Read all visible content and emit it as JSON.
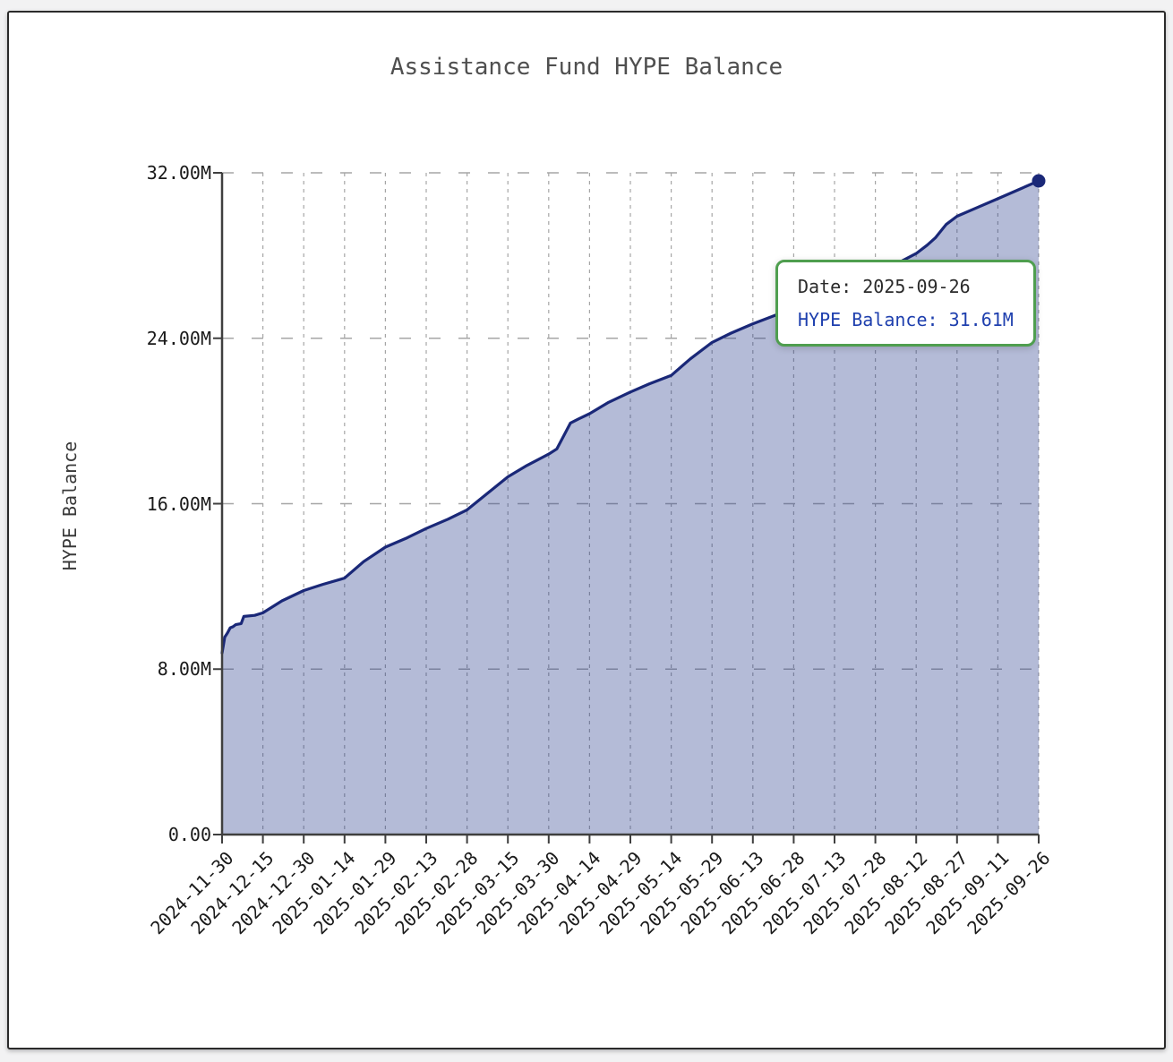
{
  "page": {
    "background_color": "#f2f2f3",
    "card_border_color": "#2b2b2b"
  },
  "chart_data": {
    "type": "area",
    "title": "Assistance Fund HYPE Balance",
    "xlabel": "",
    "ylabel": "HYPE Balance",
    "unit": "millions of HYPE",
    "grid": true,
    "legend_position": "none",
    "x_range": [
      "2024-11-30",
      "2025-09-26"
    ],
    "ylim_m": [
      0,
      32
    ],
    "y_ticks": [
      {
        "value_m": 0,
        "label": "0.00"
      },
      {
        "value_m": 8,
        "label": "8.00M"
      },
      {
        "value_m": 16,
        "label": "16.00M"
      },
      {
        "value_m": 24,
        "label": "24.00M"
      },
      {
        "value_m": 32,
        "label": "32.00M"
      }
    ],
    "x_tick_labels": [
      "2024-11-30",
      "2024-12-15",
      "2024-12-30",
      "2025-01-14",
      "2025-01-29",
      "2025-02-13",
      "2025-02-28",
      "2025-03-15",
      "2025-03-30",
      "2025-04-14",
      "2025-04-29",
      "2025-05-14",
      "2025-05-29",
      "2025-06-13",
      "2025-06-28",
      "2025-07-13",
      "2025-07-28",
      "2025-08-12",
      "2025-08-27",
      "2025-09-11",
      "2025-09-26"
    ],
    "series": [
      {
        "name": "HYPE Balance",
        "points_m": [
          [
            "2024-11-30",
            8.78
          ],
          [
            "2024-12-01",
            9.55
          ],
          [
            "2024-12-02",
            9.75
          ],
          [
            "2024-12-03",
            10.0
          ],
          [
            "2024-12-04",
            10.05
          ],
          [
            "2024-12-05",
            10.15
          ],
          [
            "2024-12-07",
            10.2
          ],
          [
            "2024-12-08",
            10.55
          ],
          [
            "2024-12-12",
            10.6
          ],
          [
            "2024-12-15",
            10.72
          ],
          [
            "2024-12-22",
            11.3
          ],
          [
            "2024-12-30",
            11.8
          ],
          [
            "2025-01-06",
            12.1
          ],
          [
            "2025-01-14",
            12.4
          ],
          [
            "2025-01-21",
            13.2
          ],
          [
            "2025-01-29",
            13.9
          ],
          [
            "2025-02-06",
            14.35
          ],
          [
            "2025-02-13",
            14.8
          ],
          [
            "2025-02-21",
            15.25
          ],
          [
            "2025-02-28",
            15.7
          ],
          [
            "2025-03-07",
            16.45
          ],
          [
            "2025-03-15",
            17.3
          ],
          [
            "2025-03-22",
            17.85
          ],
          [
            "2025-03-30",
            18.4
          ],
          [
            "2025-04-02",
            18.65
          ],
          [
            "2025-04-05",
            19.4
          ],
          [
            "2025-04-07",
            19.9
          ],
          [
            "2025-04-10",
            20.1
          ],
          [
            "2025-04-14",
            20.35
          ],
          [
            "2025-04-21",
            20.9
          ],
          [
            "2025-04-29",
            21.4
          ],
          [
            "2025-05-06",
            21.8
          ],
          [
            "2025-05-14",
            22.2
          ],
          [
            "2025-05-21",
            23.0
          ],
          [
            "2025-05-29",
            23.8
          ],
          [
            "2025-06-05",
            24.25
          ],
          [
            "2025-06-13",
            24.7
          ],
          [
            "2025-06-20",
            25.05
          ],
          [
            "2025-06-28",
            25.45
          ],
          [
            "2025-07-05",
            25.8
          ],
          [
            "2025-07-13",
            26.2
          ],
          [
            "2025-07-20",
            26.65
          ],
          [
            "2025-07-28",
            27.1
          ],
          [
            "2025-08-04",
            27.55
          ],
          [
            "2025-08-12",
            28.1
          ],
          [
            "2025-08-16",
            28.5
          ],
          [
            "2025-08-19",
            28.85
          ],
          [
            "2025-08-23",
            29.5
          ],
          [
            "2025-08-27",
            29.9
          ],
          [
            "2025-09-03",
            30.3
          ],
          [
            "2025-09-11",
            30.75
          ],
          [
            "2025-09-18",
            31.15
          ],
          [
            "2025-09-26",
            31.61
          ]
        ]
      }
    ],
    "end_marker": {
      "date": "2025-09-26",
      "value_m": 31.61
    },
    "colors": {
      "line": "#1a2878",
      "fill": "rgba(40,60,140,0.35)",
      "marker": "#1a2878",
      "grid": "#a6a6a6",
      "axis": "#3f3f3f",
      "tick_text": "#1a1a1a",
      "title_text": "#4f4f4f"
    }
  },
  "tooltip": {
    "date_label": "Date: 2025-09-26",
    "balance_label": "HYPE Balance: 31.61M",
    "border_color": "#4f9e4f",
    "value_color": "#1e3fae"
  }
}
